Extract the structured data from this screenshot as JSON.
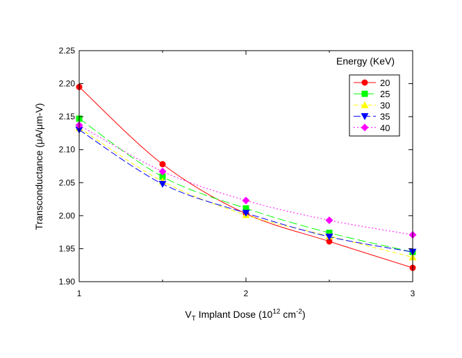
{
  "chart_data": {
    "type": "line",
    "x_axis": {
      "label_main": "V",
      "label_sub": "T",
      "label_mid": " Implant Dose (10",
      "label_sup1": "12",
      "label_unit": " cm",
      "label_sup2": "-2",
      "label_end": ")",
      "range": [
        1,
        3
      ],
      "ticks": [
        1,
        2,
        3
      ],
      "minor_ticks": [
        1.5,
        2.5
      ]
    },
    "y_axis": {
      "label": "Transconductance (μA/μm-V)",
      "range": [
        1.9,
        2.25
      ],
      "ticks": [
        "1.90",
        "1.95",
        "2.00",
        "2.05",
        "2.10",
        "2.15",
        "2.20",
        "2.25"
      ]
    },
    "legend": {
      "title": "Energy (KeV)",
      "placement": "top-right"
    },
    "x": [
      1,
      1.5,
      2,
      2.5,
      3
    ],
    "series": [
      {
        "name": "20",
        "color": "#ff0000",
        "marker": "circle",
        "dash": "",
        "values": [
          2.195,
          2.078,
          2.003,
          1.961,
          1.921
        ]
      },
      {
        "name": "25",
        "color": "#00ff00",
        "marker": "square",
        "dash": "12,5",
        "values": [
          2.147,
          2.059,
          2.011,
          1.974,
          1.945
        ]
      },
      {
        "name": "30",
        "color": "#ffff00",
        "marker": "triangle-up",
        "dash": "6,4",
        "values": [
          2.133,
          2.052,
          2.001,
          1.969,
          1.937
        ]
      },
      {
        "name": "35",
        "color": "#0000ff",
        "marker": "triangle-down",
        "dash": "10,4",
        "values": [
          2.13,
          2.048,
          2.004,
          1.968,
          1.945
        ]
      },
      {
        "name": "40",
        "color": "#ff00ff",
        "marker": "diamond",
        "dash": "2,3",
        "values": [
          2.137,
          2.067,
          2.023,
          1.993,
          1.971
        ]
      }
    ]
  }
}
